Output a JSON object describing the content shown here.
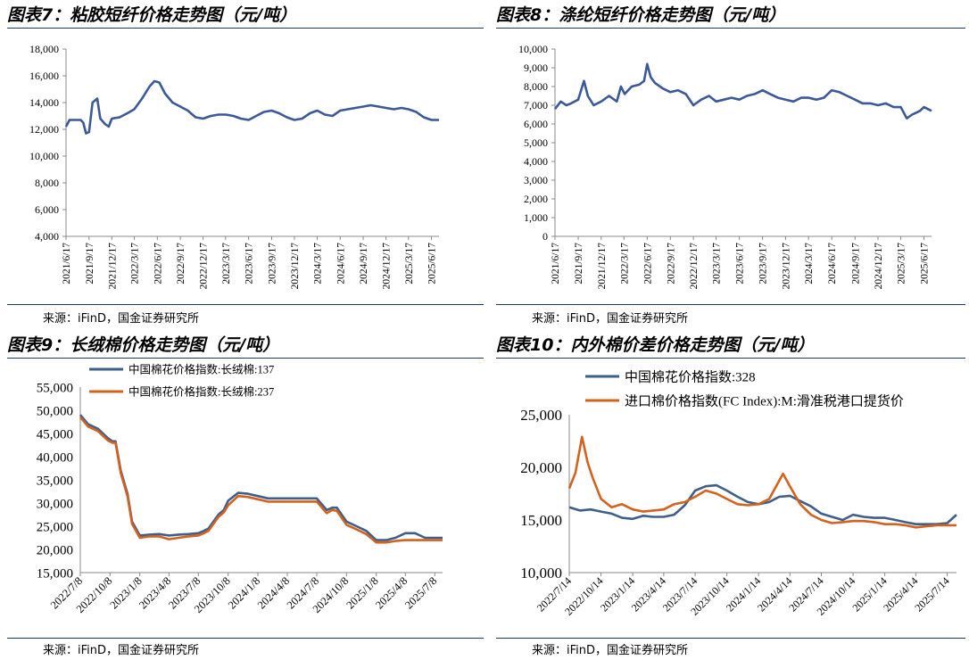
{
  "panels": [
    {
      "title": "图表7：粘胶短纤价格走势图（元/吨）",
      "source": "来源：iFinD，国金证券研究所"
    },
    {
      "title": "图表8：涤纶短纤价格走势图（元/吨）",
      "source": "来源：iFinD，国金证券研究所"
    },
    {
      "title": "图表9：长绒棉价格走势图（元/吨）",
      "source": "来源：iFinD，国金证券研究所"
    },
    {
      "title": "图表10：内外棉价差价格走势图（元/吨）",
      "source": "来源：iFinD，国金证券研究所"
    }
  ],
  "chart_data": [
    {
      "type": "line",
      "title": "图表7：粘胶短纤价格走势图（元/吨）",
      "ylim": [
        4000,
        18000
      ],
      "yticks": [
        4000,
        6000,
        8000,
        10000,
        12000,
        14000,
        16000,
        18000
      ],
      "xticks": [
        "2021/6/17",
        "2021/9/17",
        "2021/12/17",
        "2022/3/17",
        "2022/6/17",
        "2022/9/17",
        "2022/12/17",
        "2023/3/17",
        "2023/6/17",
        "2023/9/17",
        "2023/12/17",
        "2024/3/17",
        "2024/6/17",
        "2024/9/17",
        "2024/12/17",
        "2025/3/17",
        "2025/6/17"
      ],
      "grid": false,
      "legend": "none",
      "series": [
        {
          "color": "#3b5998",
          "x": [
            "2021/6/17",
            "2021/7/1",
            "2021/8/15",
            "2021/8/25",
            "2021/9/5",
            "2021/9/17",
            "2021/10/1",
            "2021/10/20",
            "2021/11/1",
            "2021/11/20",
            "2021/12/5",
            "2021/12/17",
            "2022/1/17",
            "2022/2/17",
            "2022/3/17",
            "2022/4/17",
            "2022/5/17",
            "2022/6/5",
            "2022/6/25",
            "2022/7/17",
            "2022/8/17",
            "2022/9/17",
            "2022/10/17",
            "2022/11/17",
            "2022/12/17",
            "2023/1/17",
            "2023/2/17",
            "2023/3/17",
            "2023/4/17",
            "2023/5/17",
            "2023/6/17",
            "2023/7/17",
            "2023/8/17",
            "2023/9/17",
            "2023/10/17",
            "2023/11/17",
            "2023/12/17",
            "2024/1/17",
            "2024/2/17",
            "2024/3/17",
            "2024/4/17",
            "2024/5/17",
            "2024/6/17",
            "2024/7/17",
            "2024/8/17",
            "2024/9/17",
            "2024/10/17",
            "2024/11/17",
            "2024/12/17",
            "2025/1/17",
            "2025/2/17",
            "2025/3/17",
            "2025/4/17",
            "2025/5/17",
            "2025/6/17",
            "2025/7/17"
          ],
          "y": [
            12200,
            12700,
            12700,
            12500,
            11700,
            11800,
            14000,
            14300,
            12800,
            12400,
            12200,
            12800,
            12900,
            13200,
            13500,
            14300,
            15200,
            15600,
            15500,
            14700,
            14000,
            13700,
            13400,
            12900,
            12800,
            13000,
            13100,
            13100,
            13000,
            12800,
            12700,
            13000,
            13300,
            13400,
            13200,
            12900,
            12700,
            12800,
            13200,
            13400,
            13100,
            13000,
            13400,
            13500,
            13600,
            13700,
            13800,
            13700,
            13600,
            13500,
            13600,
            13500,
            13300,
            12900,
            12700,
            12700
          ]
        }
      ]
    },
    {
      "type": "line",
      "title": "图表8：涤纶短纤价格走势图（元/吨）",
      "ylim": [
        0,
        10000
      ],
      "yticks": [
        0,
        1000,
        2000,
        3000,
        4000,
        5000,
        6000,
        7000,
        8000,
        9000,
        10000
      ],
      "xticks": [
        "2021/6/17",
        "2021/9/17",
        "2021/12/17",
        "2022/3/17",
        "2022/6/17",
        "2022/9/17",
        "2022/12/17",
        "2023/3/17",
        "2023/6/17",
        "2023/9/17",
        "2023/12/17",
        "2024/3/17",
        "2024/6/17",
        "2024/9/17",
        "2024/12/17",
        "2025/3/17",
        "2025/6/17"
      ],
      "grid": false,
      "legend": "none",
      "series": [
        {
          "color": "#3b5998",
          "x": [
            "2021/6/17",
            "2021/7/10",
            "2021/8/1",
            "2021/8/20",
            "2021/9/17",
            "2021/10/10",
            "2021/10/25",
            "2021/11/17",
            "2021/12/17",
            "2022/1/17",
            "2022/2/17",
            "2022/3/5",
            "2022/3/20",
            "2022/4/17",
            "2022/5/17",
            "2022/6/5",
            "2022/6/17",
            "2022/7/1",
            "2022/7/17",
            "2022/8/17",
            "2022/9/17",
            "2022/10/17",
            "2022/11/17",
            "2022/12/17",
            "2023/1/17",
            "2023/2/17",
            "2023/3/17",
            "2023/4/17",
            "2023/5/17",
            "2023/6/17",
            "2023/7/17",
            "2023/8/17",
            "2023/9/17",
            "2023/10/17",
            "2023/11/17",
            "2023/12/17",
            "2024/1/17",
            "2024/2/17",
            "2024/3/17",
            "2024/4/17",
            "2024/5/17",
            "2024/6/17",
            "2024/7/17",
            "2024/8/17",
            "2024/9/17",
            "2024/10/17",
            "2024/11/17",
            "2024/12/17",
            "2025/1/17",
            "2025/2/17",
            "2025/3/17",
            "2025/4/10",
            "2025/5/1",
            "2025/5/17",
            "2025/6/1",
            "2025/6/17",
            "2025/7/17"
          ],
          "y": [
            6800,
            7200,
            7000,
            7100,
            7300,
            8300,
            7500,
            7000,
            7200,
            7500,
            7200,
            8000,
            7600,
            8000,
            8100,
            8300,
            9200,
            8500,
            8200,
            7900,
            7700,
            7800,
            7600,
            7000,
            7300,
            7500,
            7200,
            7300,
            7400,
            7300,
            7500,
            7600,
            7800,
            7600,
            7400,
            7300,
            7200,
            7400,
            7400,
            7300,
            7400,
            7800,
            7700,
            7500,
            7300,
            7100,
            7100,
            7000,
            7100,
            6900,
            6900,
            6300,
            6500,
            6600,
            6700,
            6900,
            6700
          ]
        }
      ]
    },
    {
      "type": "line",
      "title": "图表9：长绒棉价格走势图（元/吨）",
      "ylim": [
        15000,
        55000
      ],
      "yticks": [
        15000,
        20000,
        25000,
        30000,
        35000,
        40000,
        45000,
        50000,
        55000
      ],
      "xticks": [
        "2022/7/8",
        "2022/10/8",
        "2023/1/8",
        "2023/4/8",
        "2023/7/8",
        "2023/10/8",
        "2024/1/8",
        "2024/4/8",
        "2024/7/8",
        "2024/10/8",
        "2025/1/8",
        "2025/4/8",
        "2025/7/8"
      ],
      "grid": false,
      "legend": "top-left",
      "series": [
        {
          "name": "中国棉花价格指数:长绒棉:137",
          "color": "#3e5f8a",
          "x": [
            "2022/7/8",
            "2022/8/1",
            "2022/9/1",
            "2022/10/1",
            "2022/10/15",
            "2022/10/25",
            "2022/11/10",
            "2022/12/1",
            "2022/12/15",
            "2023/1/8",
            "2023/2/8",
            "2023/3/8",
            "2023/4/8",
            "2023/5/8",
            "2023/6/8",
            "2023/7/8",
            "2023/7/25",
            "2023/8/8",
            "2023/9/8",
            "2023/9/25",
            "2023/10/8",
            "2023/11/8",
            "2023/12/8",
            "2024/1/8",
            "2024/2/8",
            "2024/3/8",
            "2024/4/8",
            "2024/5/8",
            "2024/6/8",
            "2024/7/8",
            "2024/8/8",
            "2024/8/25",
            "2024/9/8",
            "2024/10/8",
            "2024/11/8",
            "2024/12/8",
            "2025/1/8",
            "2025/2/8",
            "2025/3/8",
            "2025/4/8",
            "2025/5/8",
            "2025/6/8",
            "2025/7/8",
            "2025/8/1"
          ],
          "y": [
            49000,
            47000,
            46000,
            44000,
            43300,
            43300,
            37000,
            32000,
            26000,
            23000,
            23200,
            23300,
            23000,
            23200,
            23300,
            23500,
            24000,
            24500,
            27500,
            28500,
            30500,
            32200,
            32000,
            31500,
            31000,
            31000,
            31000,
            31000,
            31000,
            31000,
            28500,
            29000,
            29000,
            26000,
            25000,
            24000,
            22000,
            22000,
            22500,
            23500,
            23500,
            22500,
            22500,
            22500
          ]
        },
        {
          "name": "中国棉花价格指数:长绒棉:237",
          "color": "#d4621f",
          "x": [
            "2022/7/8",
            "2022/8/1",
            "2022/9/1",
            "2022/10/1",
            "2022/10/15",
            "2022/10/25",
            "2022/11/10",
            "2022/12/1",
            "2022/12/15",
            "2023/1/8",
            "2023/2/8",
            "2023/3/8",
            "2023/4/8",
            "2023/5/8",
            "2023/6/8",
            "2023/7/8",
            "2023/7/25",
            "2023/8/8",
            "2023/9/8",
            "2023/9/25",
            "2023/10/8",
            "2023/11/8",
            "2023/12/8",
            "2024/1/8",
            "2024/2/8",
            "2024/3/8",
            "2024/4/8",
            "2024/5/8",
            "2024/6/8",
            "2024/7/8",
            "2024/8/8",
            "2024/8/25",
            "2024/9/8",
            "2024/10/8",
            "2024/11/8",
            "2024/12/8",
            "2025/1/8",
            "2025/2/8",
            "2025/3/8",
            "2025/4/8",
            "2025/5/8",
            "2025/6/8",
            "2025/7/8",
            "2025/8/1"
          ],
          "y": [
            48500,
            46500,
            45500,
            43500,
            43000,
            43000,
            36500,
            31500,
            25500,
            22500,
            22800,
            22800,
            22200,
            22500,
            22800,
            23000,
            23500,
            24000,
            27000,
            28000,
            29500,
            31500,
            31300,
            30800,
            30300,
            30300,
            30300,
            30300,
            30300,
            30300,
            27800,
            28500,
            28300,
            25300,
            24300,
            23300,
            21500,
            21500,
            21800,
            22000,
            22000,
            22000,
            22000,
            22000
          ]
        }
      ]
    },
    {
      "type": "line",
      "title": "图表10：内外棉价差价格走势图（元/吨）",
      "ylim": [
        10000,
        25000
      ],
      "yticks": [
        10000,
        15000,
        20000,
        25000
      ],
      "xticks": [
        "2022/7/14",
        "2022/10/14",
        "2023/1/14",
        "2023/4/14",
        "2023/7/14",
        "2023/10/14",
        "2024/1/14",
        "2024/4/14",
        "2024/7/14",
        "2024/10/14",
        "2025/1/14",
        "2025/4/14",
        "2025/7/14"
      ],
      "grid": false,
      "legend": "top-left",
      "series": [
        {
          "name": "中国棉花价格指数:328",
          "color": "#3e5f8a",
          "x": [
            "2022/7/14",
            "2022/8/14",
            "2022/9/14",
            "2022/10/14",
            "2022/11/14",
            "2022/12/14",
            "2023/1/14",
            "2023/2/14",
            "2023/3/14",
            "2023/4/14",
            "2023/5/14",
            "2023/6/14",
            "2023/7/14",
            "2023/8/14",
            "2023/9/14",
            "2023/10/14",
            "2023/11/14",
            "2023/12/14",
            "2024/1/14",
            "2024/2/14",
            "2024/3/14",
            "2024/4/14",
            "2024/5/14",
            "2024/6/14",
            "2024/7/14",
            "2024/8/14",
            "2024/9/14",
            "2024/10/14",
            "2024/11/14",
            "2024/12/14",
            "2025/1/14",
            "2025/2/14",
            "2025/3/14",
            "2025/4/14",
            "2025/5/14",
            "2025/6/14",
            "2025/7/14",
            "2025/8/10"
          ],
          "y": [
            16200,
            15900,
            16000,
            15800,
            15600,
            15200,
            15100,
            15400,
            15300,
            15300,
            15500,
            16400,
            17800,
            18200,
            18300,
            17800,
            17200,
            16700,
            16500,
            16700,
            17200,
            17300,
            16800,
            16300,
            15600,
            15300,
            15000,
            15500,
            15300,
            15200,
            15200,
            15000,
            14800,
            14600,
            14600,
            14600,
            14700,
            15500
          ]
        },
        {
          "name": "进口棉价格指数(FC Index):M:滑准税港口提货价",
          "color": "#d4621f",
          "x": [
            "2022/7/14",
            "2022/8/1",
            "2022/8/20",
            "2022/9/5",
            "2022/9/20",
            "2022/10/14",
            "2022/11/14",
            "2022/12/14",
            "2023/1/14",
            "2023/2/14",
            "2023/3/14",
            "2023/4/14",
            "2023/5/14",
            "2023/6/14",
            "2023/7/14",
            "2023/8/14",
            "2023/9/14",
            "2023/10/14",
            "2023/11/14",
            "2023/12/14",
            "2024/1/14",
            "2024/2/14",
            "2024/3/10",
            "2024/3/25",
            "2024/4/14",
            "2024/5/14",
            "2024/6/14",
            "2024/7/14",
            "2024/8/14",
            "2024/9/14",
            "2024/10/14",
            "2024/11/14",
            "2024/12/14",
            "2025/1/14",
            "2025/2/14",
            "2025/3/14",
            "2025/4/14",
            "2025/5/14",
            "2025/6/14",
            "2025/7/14",
            "2025/8/10"
          ],
          "y": [
            18000,
            19500,
            22900,
            20500,
            19000,
            17000,
            16200,
            16500,
            16000,
            15800,
            15900,
            16000,
            16500,
            16700,
            17200,
            17800,
            17500,
            17000,
            16500,
            16400,
            16500,
            17000,
            18500,
            19400,
            18200,
            16500,
            15500,
            15000,
            14700,
            14800,
            14900,
            14900,
            14800,
            14600,
            14600,
            14500,
            14300,
            14400,
            14500,
            14500,
            14500
          ]
        }
      ]
    }
  ]
}
